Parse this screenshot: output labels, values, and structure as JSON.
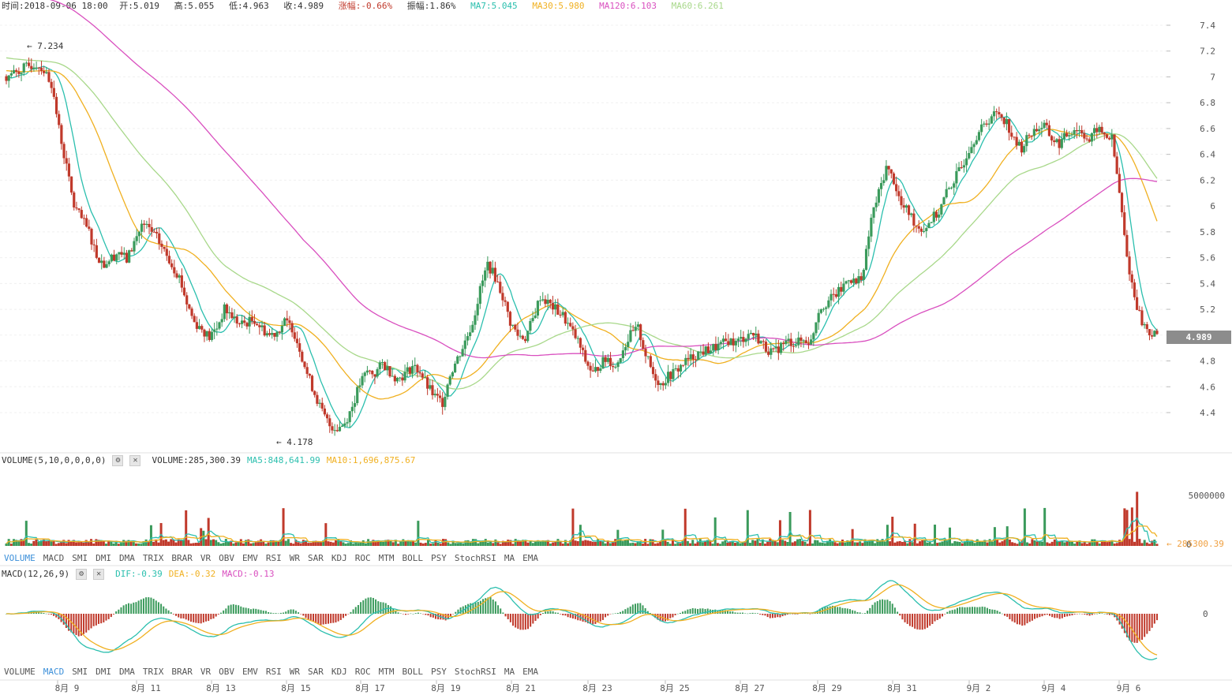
{
  "info": {
    "time": "时间:2018-09-06 18:00",
    "open": "开:5.019",
    "high": "高:5.055",
    "low": "低:4.963",
    "close": "收:4.989",
    "change": "涨幅:-0.66%",
    "amplitude": "振幅:1.86%",
    "ma7": "MA7:5.045",
    "ma30": "MA30:5.980",
    "ma120": "MA120:6.103",
    "ma60": "MA60:6.261"
  },
  "volume_header": {
    "title": "VOLUME(5,10,0,0,0,0)",
    "volume": "VOLUME:285,300.39",
    "ma5": "MA5:848,641.99",
    "ma10": "MA10:1,696,875.67"
  },
  "macd_header": {
    "title": "MACD(12,26,9)",
    "dif": "DIF:-0.39",
    "dea": "DEA:-0.32",
    "macd": "MACD:-0.13"
  },
  "tabs": [
    "VOLUME",
    "MACD",
    "SMI",
    "DMI",
    "DMA",
    "TRIX",
    "BRAR",
    "VR",
    "OBV",
    "EMV",
    "RSI",
    "WR",
    "SAR",
    "KDJ",
    "ROC",
    "MTM",
    "BOLL",
    "PSY",
    "StochRSI",
    "MA",
    "EMA"
  ],
  "tabs_active_1": "VOLUME",
  "tabs_active_2": "MACD",
  "colors": {
    "up": "#3a9a5b",
    "down": "#c0392b",
    "ma7": "#2bbfae",
    "ma30": "#f0b020",
    "ma120": "#d94fbf",
    "ma60": "#a8d88a",
    "price_tag_bg": "#8c8c8c"
  },
  "chart_data": [
    {
      "type": "candlestick",
      "title": "",
      "x_ticks": [
        "8月 9",
        "8月 11",
        "8月 13",
        "8月 15",
        "8月 17",
        "8月 19",
        "8月 21",
        "8月 23",
        "8月 25",
        "8月 27",
        "8月 29",
        "8月 31",
        "9月 2",
        "9月 4",
        "9月 6"
      ],
      "y_ticks": [
        "7.4",
        "7.2",
        "7",
        "6.8",
        "6.6",
        "6.4",
        "6.2",
        "6",
        "5.8",
        "5.6",
        "5.4",
        "5.2",
        "5",
        "4.8",
        "4.6",
        "4.4"
      ],
      "ylim": [
        4.2,
        7.45
      ],
      "high_marker": "7.234",
      "low_marker": "4.178",
      "last_price": "4.989",
      "close_path": [
        7.0,
        7.03,
        7.06,
        7.08,
        7.1,
        7.05,
        6.95,
        6.6,
        6.3,
        6.0,
        5.9,
        5.8,
        5.62,
        5.55,
        5.6,
        5.65,
        5.58,
        5.72,
        5.85,
        5.82,
        5.75,
        5.65,
        5.55,
        5.45,
        5.25,
        5.1,
        5.05,
        4.98,
        5.06,
        5.2,
        5.15,
        5.08,
        5.1,
        5.12,
        5.05,
        5.0,
        5.03,
        5.1,
        5.06,
        4.9,
        4.7,
        4.55,
        4.4,
        4.3,
        4.28,
        4.32,
        4.45,
        4.62,
        4.72,
        4.7,
        4.78,
        4.72,
        4.66,
        4.7,
        4.76,
        4.72,
        4.6,
        4.52,
        4.48,
        4.7,
        4.82,
        4.95,
        5.1,
        5.35,
        5.55,
        5.45,
        5.3,
        5.1,
        5.0,
        4.98,
        5.12,
        5.3,
        5.25,
        5.2,
        5.15,
        5.05,
        4.95,
        4.8,
        4.7,
        4.78,
        4.82,
        4.75,
        4.9,
        5.0,
        5.05,
        4.85,
        4.7,
        4.62,
        4.68,
        4.72,
        4.78,
        4.82,
        4.86,
        4.88,
        4.9,
        4.92,
        4.96,
        4.94,
        4.98,
        5.02,
        4.97,
        4.9,
        4.86,
        4.92,
        4.95,
        4.94,
        4.96,
        4.95,
        5.2,
        5.25,
        5.3,
        5.35,
        5.45,
        5.4,
        5.5,
        5.9,
        6.1,
        6.3,
        6.2,
        6.0,
        5.95,
        5.85,
        5.82,
        5.9,
        5.95,
        6.1,
        6.2,
        6.3,
        6.45,
        6.55,
        6.62,
        6.7,
        6.72,
        6.65,
        6.5,
        6.45,
        6.55,
        6.6,
        6.62,
        6.52,
        6.48,
        6.55,
        6.6,
        6.58,
        6.5,
        6.6,
        6.55,
        6.52,
        6.1,
        5.6,
        5.3,
        5.1,
        5.02,
        4.99
      ],
      "ma7": "line",
      "ma30": "line",
      "ma60": "line",
      "ma120": "line"
    },
    {
      "type": "bar",
      "title": "VOLUME",
      "y_ticks": [
        "5000000",
        "0"
      ],
      "last_value": "285300.39"
    },
    {
      "type": "bar",
      "title": "MACD",
      "y_ticks": [
        "0"
      ]
    }
  ]
}
